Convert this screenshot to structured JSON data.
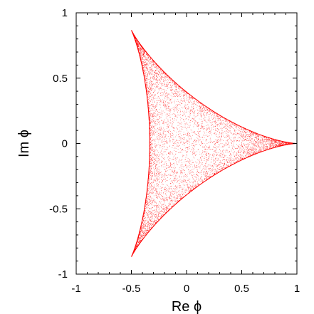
{
  "chart_data": {
    "type": "scatter",
    "title": "",
    "xlabel": "Re ϕ",
    "ylabel": "Im ϕ",
    "xlim": [
      -1,
      1
    ],
    "ylim": [
      -1,
      1
    ],
    "x_ticks": [
      {
        "value": -1,
        "label": "-1"
      },
      {
        "value": -0.5,
        "label": "-0.5"
      },
      {
        "value": 0,
        "label": "0"
      },
      {
        "value": 0.5,
        "label": "0.5"
      },
      {
        "value": 1,
        "label": "1"
      }
    ],
    "y_ticks": [
      {
        "value": -1,
        "label": "-1"
      },
      {
        "value": -0.5,
        "label": "-0.5"
      },
      {
        "value": 0,
        "label": "0"
      },
      {
        "value": 0.5,
        "label": "0.5"
      },
      {
        "value": 1,
        "label": "1"
      }
    ],
    "grid": false,
    "legend": "none",
    "series": [
      {
        "color": "#ff0000",
        "region": "filled deltoid (three-cusped hypocycloid) of points phi = (e^{ia} + e^{ib} + e^{-i(a+b)})/3",
        "cusps": [
          {
            "x": 1,
            "y": 0
          },
          {
            "x": -0.5,
            "y": 0.866
          },
          {
            "x": -0.5,
            "y": -0.866
          }
        ]
      }
    ]
  }
}
